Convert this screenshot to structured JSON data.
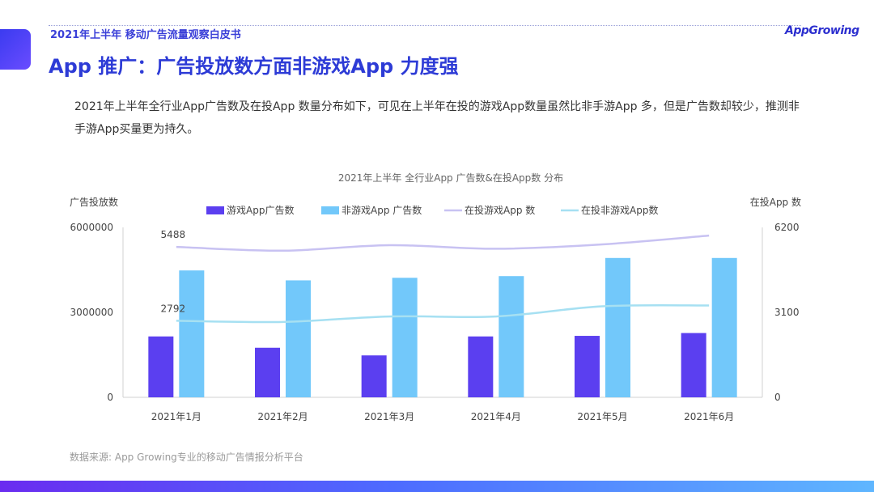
{
  "header": {
    "report_title": "2021年上半年 移动广告流量观察白皮书",
    "logo_text": "AppGrowing"
  },
  "page_title": "App 推广：广告投放数方面非游戏App 力度强",
  "description": "2021年上半年全行业App广告数及在投App 数量分布如下，可见在上半年在投的游戏App数量虽然比非手游App 多，但是广告数却较少，推测非手游App买量更为持久。",
  "footer": {
    "source": "数据来源: App Growing专业的移动广告情报分析平台"
  },
  "chart_data": {
    "type": "bar",
    "title": "2021年上半年 全行业App 广告数&在投App数 分布",
    "ylabel": "广告投放数",
    "y2label": "在投App 数",
    "ylim": [
      0,
      6000000
    ],
    "y2lim": [
      0,
      6200
    ],
    "yticks": [
      "0",
      "3000000",
      "6000000"
    ],
    "y2ticks": [
      "0",
      "3100",
      "6200"
    ],
    "categories": [
      "2021年1月",
      "2021年2月",
      "2021年3月",
      "2021年4月",
      "2021年5月",
      "2021年6月"
    ],
    "legend_position": "top",
    "series": [
      {
        "name": "游戏App广告数",
        "kind": "bar",
        "axis": "left",
        "color": "#5b3ff0",
        "values": [
          2150000,
          1750000,
          1480000,
          2150000,
          2170000,
          2270000
        ]
      },
      {
        "name": "非游戏App 广告数",
        "kind": "bar",
        "axis": "left",
        "color": "#72c8fa",
        "values": [
          4480000,
          4130000,
          4220000,
          4280000,
          4920000,
          4920000
        ]
      },
      {
        "name": "在投游戏App 数",
        "kind": "line",
        "axis": "right",
        "color": "#c8c2f2",
        "values": [
          5488,
          5350,
          5550,
          5420,
          5580,
          5900
        ]
      },
      {
        "name": "在投非游戏App数",
        "kind": "line",
        "axis": "right",
        "color": "#a6e0f2",
        "values": [
          2792,
          2750,
          2950,
          2950,
          3320,
          3350
        ]
      }
    ],
    "annotations": [
      {
        "series": 2,
        "index": 0,
        "text": "5488"
      },
      {
        "series": 3,
        "index": 0,
        "text": "2792"
      }
    ]
  }
}
